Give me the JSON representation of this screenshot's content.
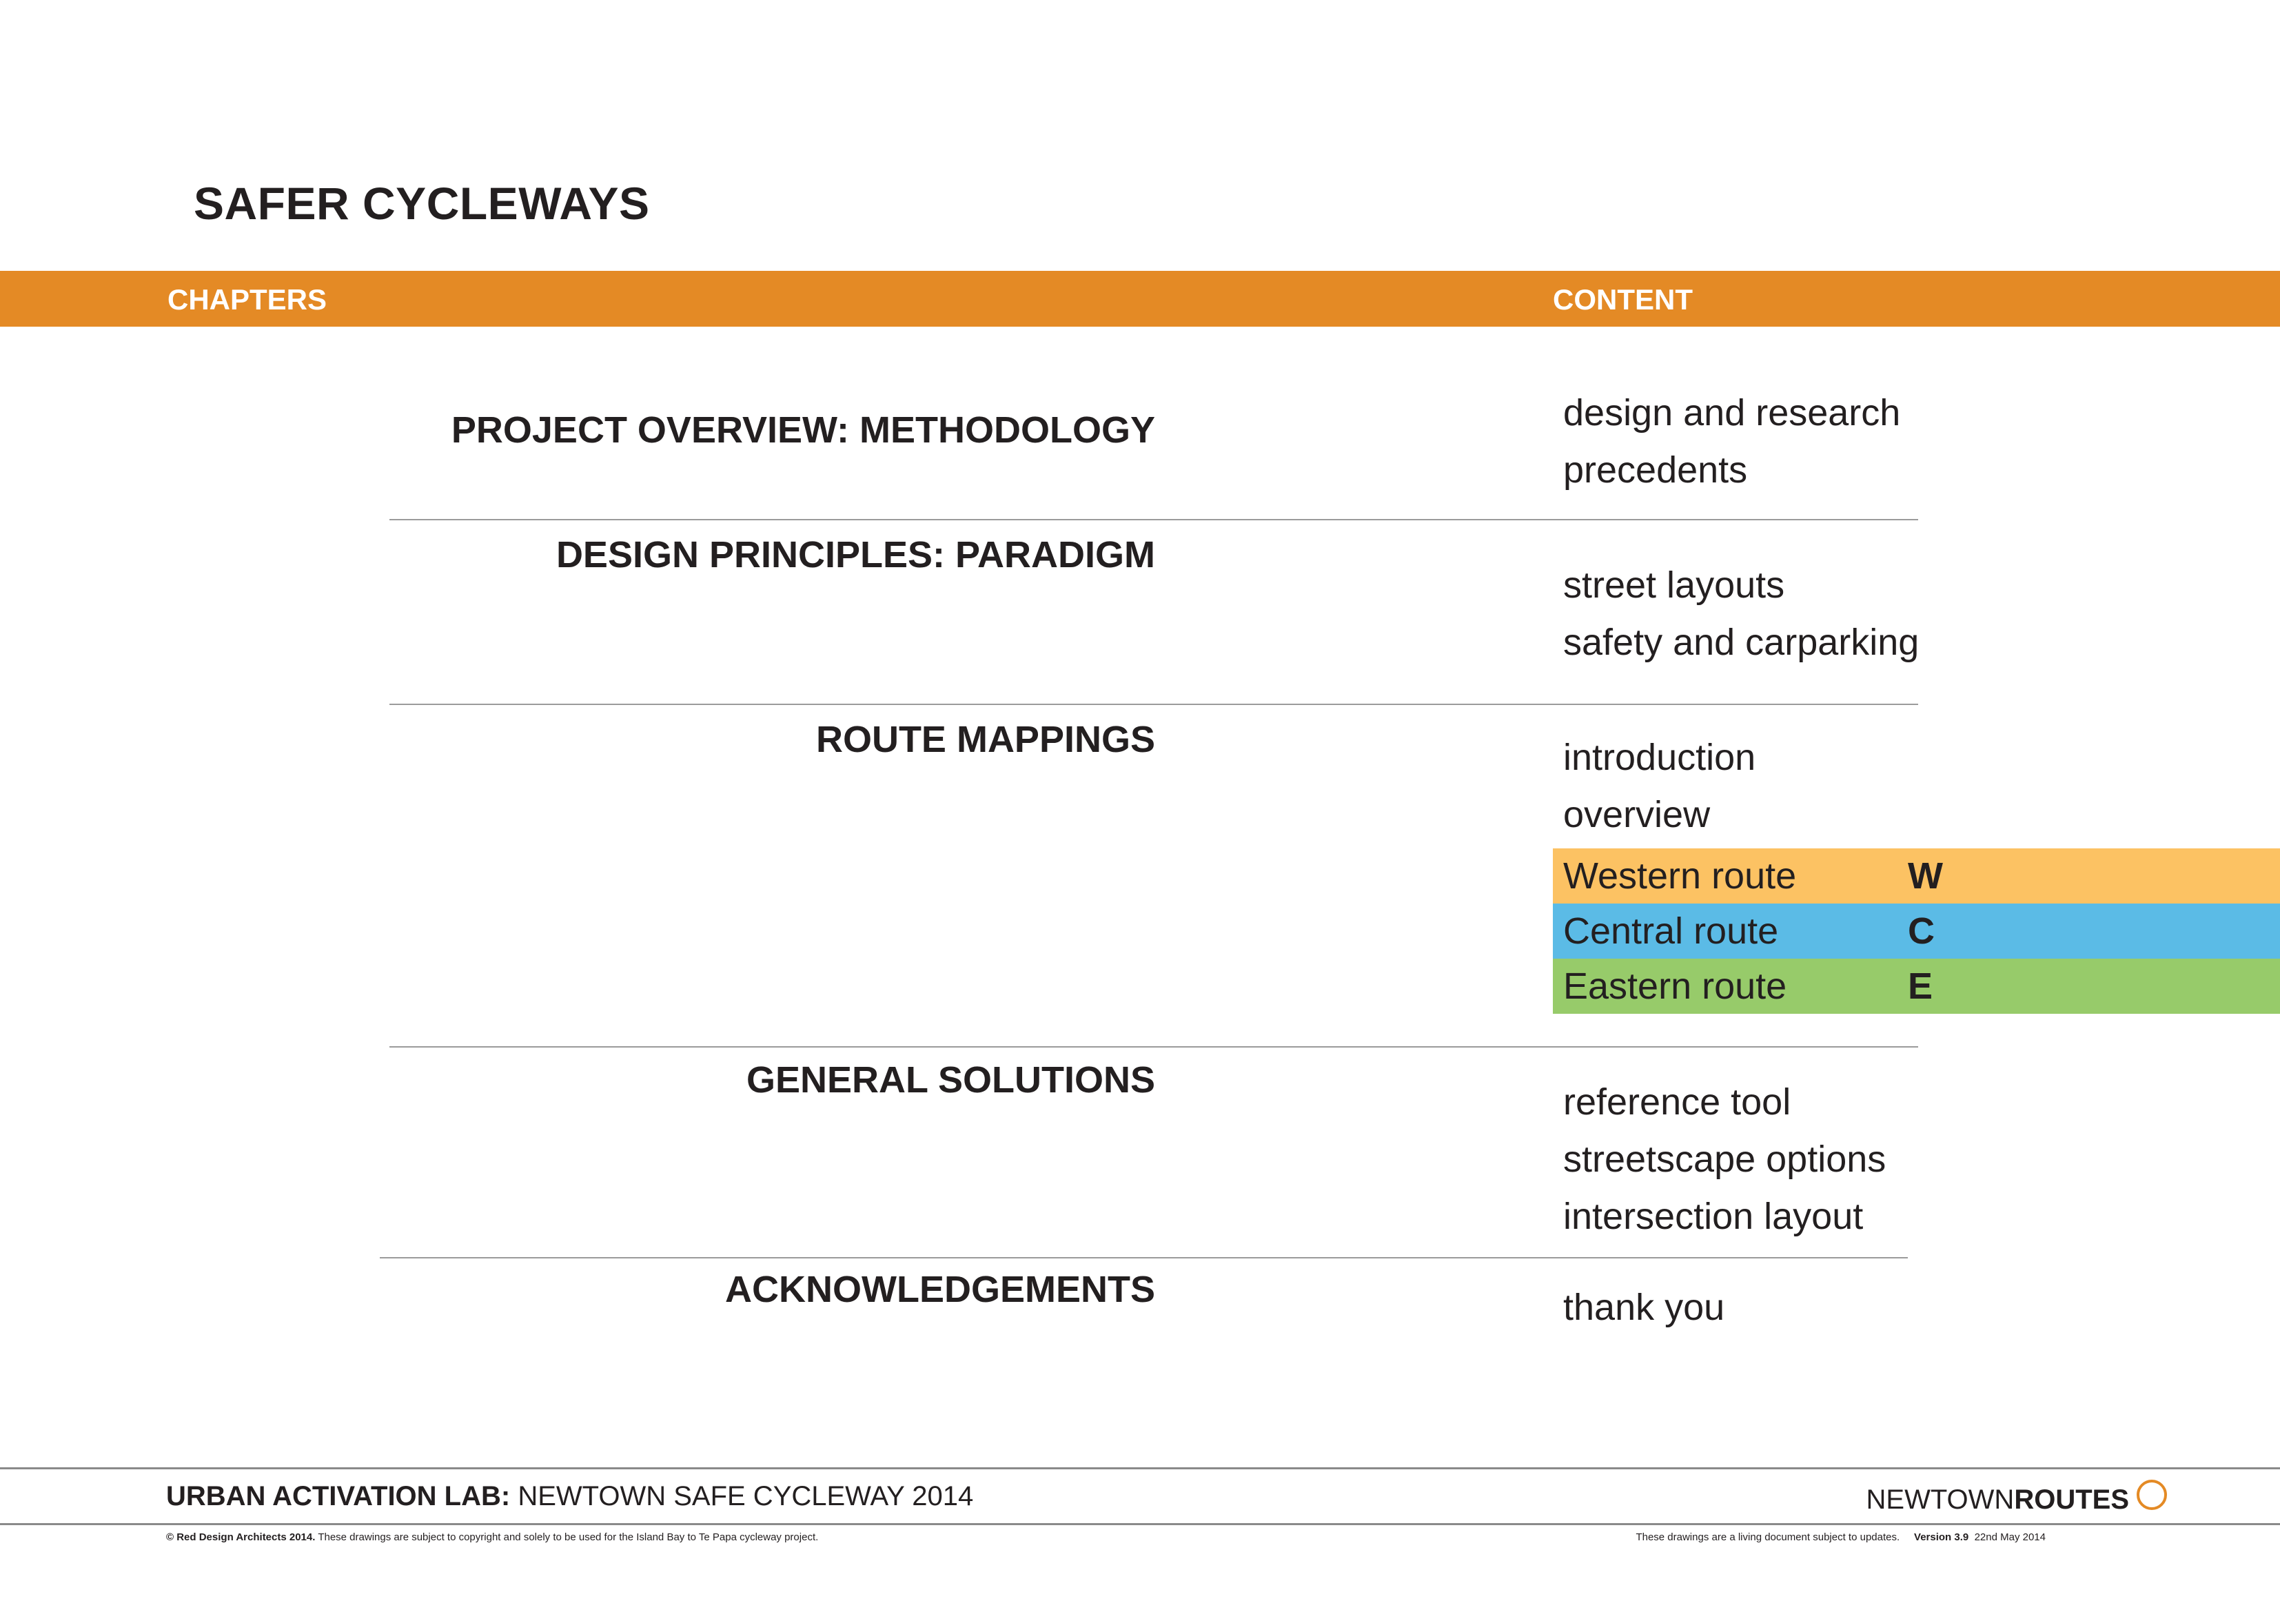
{
  "page_title": "SAFER CYCLEWAYS",
  "header": {
    "chapters_label": "CHAPTERS",
    "content_label": "CONTENT",
    "color": "#e48a25"
  },
  "chapters": [
    {
      "title": "PROJECT OVERVIEW: METHODOLOGY",
      "content": [
        "design and research",
        "precedents"
      ]
    },
    {
      "title": "DESIGN PRINCIPLES: PARADIGM",
      "content": [
        "street layouts",
        "safety and carparking"
      ]
    },
    {
      "title": "ROUTE MAPPINGS",
      "content": [
        "introduction",
        "overview"
      ]
    },
    {
      "title": "GENERAL SOLUTIONS",
      "content": [
        "reference tool",
        "streetscape options",
        "intersection layout"
      ]
    },
    {
      "title": "ACKNOWLEDGEMENTS",
      "content": [
        "thank you"
      ]
    }
  ],
  "routes": [
    {
      "name": "Western route",
      "code": "W",
      "color": "#fcc263"
    },
    {
      "name": "Central route",
      "code": "C",
      "color": "#5bbbe6"
    },
    {
      "name": "Eastern route",
      "code": "E",
      "color": "#97cb6a"
    }
  ],
  "footer": {
    "lab_bold": "URBAN ACTIVATION LAB:",
    "lab_rest": " NEWTOWN SAFE CYCLEWAY 2014",
    "brand_prefix": "NEWTOWN",
    "brand_bold": "ROUTES",
    "copyright_bold": "© Red Design Architects 2014.",
    "copyright_rest": " These drawings are subject to copyright and solely to be used for the Island Bay to Te Papa cycleway project.",
    "living_doc": "These drawings are a living document subject to updates.",
    "version_bold": "Version 3.9",
    "date": "22nd May 2014"
  }
}
